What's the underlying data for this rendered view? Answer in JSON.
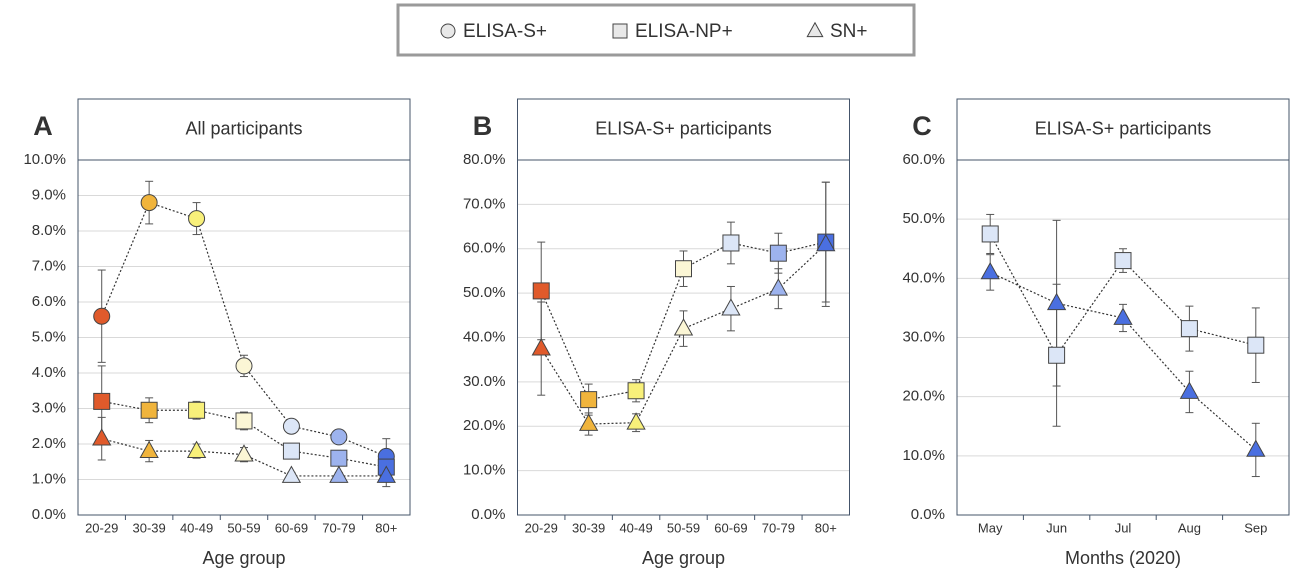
{
  "legend": {
    "items": [
      {
        "name": "ELISA-S+",
        "marker": "circle"
      },
      {
        "name": "ELISA-NP+",
        "marker": "square"
      },
      {
        "name": "SN+",
        "marker": "triangle"
      }
    ]
  },
  "chart_data": [
    {
      "type": "line",
      "panel": "A",
      "title": "All participants",
      "x_label": "Age group",
      "categories": [
        "20-29",
        "30-39",
        "40-49",
        "50-59",
        "60-69",
        "70-79",
        "80+"
      ],
      "ylim": [
        0,
        10
      ],
      "yticks": [
        {
          "value": 0,
          "label": "0.0%"
        },
        {
          "value": 1,
          "label": "1.0%"
        },
        {
          "value": 2,
          "label": "2.0%"
        },
        {
          "value": 3,
          "label": "3.0%"
        },
        {
          "value": 4,
          "label": "4.0%"
        },
        {
          "value": 5,
          "label": "5.0%"
        },
        {
          "value": 6,
          "label": "6.0%"
        },
        {
          "value": 7,
          "label": "7.0%"
        },
        {
          "value": 8,
          "label": "8.0%"
        },
        {
          "value": 9,
          "label": "9.0%"
        },
        {
          "value": 10,
          "label": "10.0%"
        }
      ],
      "grid": true,
      "series": [
        {
          "marker": "circle",
          "colors": [
            "#e05a2b",
            "#f0b43c",
            "#f8f07a",
            "#fbf6d5",
            "#dce6f7",
            "#9db3ee",
            "#4a6fe0"
          ],
          "values": [
            5.6,
            8.8,
            8.35,
            4.2,
            2.5,
            2.2,
            1.65
          ],
          "errors": [
            1.3,
            0.6,
            0.45,
            0.3,
            0.2,
            0.15,
            0.5
          ]
        },
        {
          "marker": "square",
          "colors": [
            "#e05a2b",
            "#f0b43c",
            "#f8f07a",
            "#fbf6d5",
            "#dce6f7",
            "#9db3ee",
            "#4a6fe0"
          ],
          "values": [
            3.2,
            2.95,
            2.95,
            2.65,
            1.8,
            1.6,
            1.35
          ],
          "errors": [
            1.0,
            0.35,
            0.25,
            0.25,
            0.15,
            0.15,
            0.4
          ]
        },
        {
          "marker": "triangle",
          "colors": [
            "#e05a2b",
            "#f0b43c",
            "#f8f07a",
            "#fbf6d5",
            "#dce6f7",
            "#9db3ee",
            "#4a6fe0"
          ],
          "values": [
            2.15,
            1.8,
            1.8,
            1.7,
            1.1,
            1.1,
            1.1
          ],
          "errors": [
            0.6,
            0.3,
            0.2,
            0.2,
            0.1,
            0.1,
            0.3
          ]
        }
      ]
    },
    {
      "type": "line",
      "panel": "B",
      "title": "ELISA-S+ participants",
      "x_label": "Age group",
      "categories": [
        "20-29",
        "30-39",
        "40-49",
        "50-59",
        "60-69",
        "70-79",
        "80+"
      ],
      "ylim": [
        0,
        80
      ],
      "yticks": [
        {
          "value": 0,
          "label": "0.0%"
        },
        {
          "value": 10,
          "label": "10.0%"
        },
        {
          "value": 20,
          "label": "20.0%"
        },
        {
          "value": 30,
          "label": "30.0%"
        },
        {
          "value": 40,
          "label": "40.0%"
        },
        {
          "value": 50,
          "label": "50.0%"
        },
        {
          "value": 60,
          "label": "60.0%"
        },
        {
          "value": 70,
          "label": "70.0%"
        },
        {
          "value": 80,
          "label": "80.0%"
        }
      ],
      "grid": true,
      "series": [
        {
          "marker": "square",
          "colors": [
            "#e05a2b",
            "#f0b43c",
            "#f8f07a",
            "#fbf6d5",
            "#dce6f7",
            "#9db3ee",
            "#4a6fe0"
          ],
          "values": [
            50.5,
            26,
            28,
            55.5,
            61.3,
            59,
            61.5
          ],
          "errors": [
            11,
            3.5,
            2.5,
            4,
            4.7,
            4.5,
            13.5
          ]
        },
        {
          "marker": "triangle",
          "colors": [
            "#e05a2b",
            "#f0b43c",
            "#f8f07a",
            "#fbf6d5",
            "#dce6f7",
            "#9db3ee",
            "#4a6fe0"
          ],
          "values": [
            37.5,
            20.5,
            20.8,
            42,
            46.5,
            51,
            61
          ],
          "errors": [
            10.5,
            2.5,
            2,
            4,
            5,
            4.5,
            14
          ]
        }
      ]
    },
    {
      "type": "line",
      "panel": "C",
      "title": "ELISA-S+ participants",
      "x_label": "Months (2020)",
      "categories": [
        "May",
        "Jun",
        "Jul",
        "Aug",
        "Sep"
      ],
      "ylim": [
        0,
        60
      ],
      "yticks": [
        {
          "value": 0,
          "label": "0.0%"
        },
        {
          "value": 10,
          "label": "10.0%"
        },
        {
          "value": 20,
          "label": "20.0%"
        },
        {
          "value": 30,
          "label": "30.0%"
        },
        {
          "value": 40,
          "label": "40.0%"
        },
        {
          "value": 50,
          "label": "50.0%"
        },
        {
          "value": 60,
          "label": "60.0%"
        }
      ],
      "grid": true,
      "series": [
        {
          "marker": "square",
          "colors": [
            "#dce6f7",
            "#dce6f7",
            "#dce6f7",
            "#dce6f7",
            "#dce6f7"
          ],
          "values": [
            47.5,
            27,
            43,
            31.5,
            28.7
          ],
          "errors": [
            3.3,
            12,
            2,
            3.8,
            6.3
          ]
        },
        {
          "marker": "triangle",
          "colors": [
            "#4a6fe0",
            "#4a6fe0",
            "#4a6fe0",
            "#4a6fe0",
            "#4a6fe0"
          ],
          "values": [
            41,
            35.8,
            33.3,
            20.8,
            11
          ],
          "errors": [
            3,
            14,
            2.3,
            3.5,
            4.5
          ]
        }
      ]
    }
  ]
}
